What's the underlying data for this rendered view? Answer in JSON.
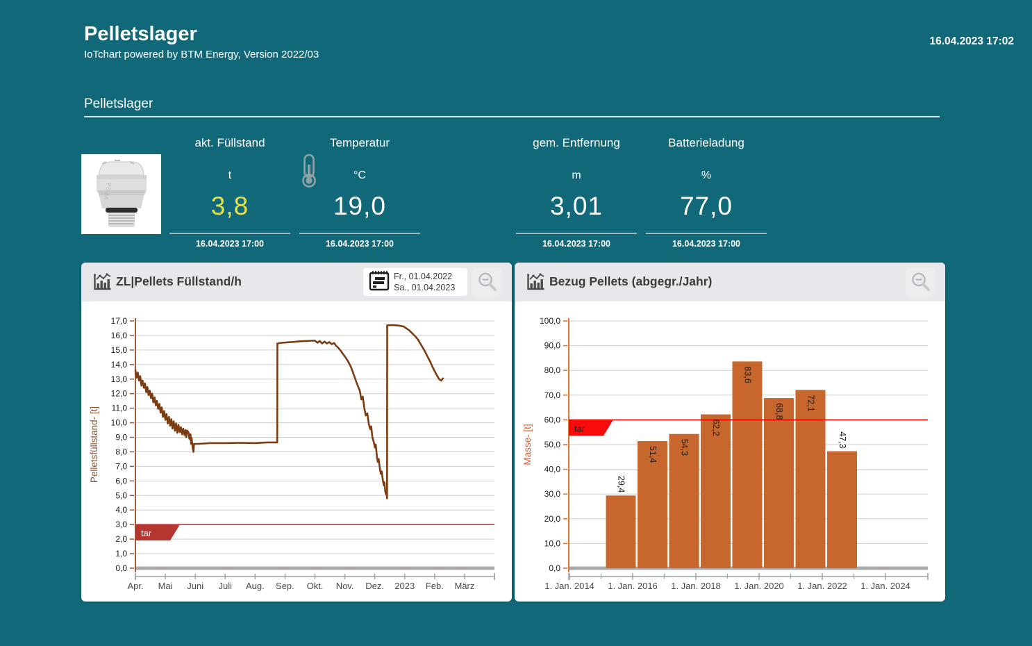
{
  "app": {
    "title": "Pelletslager",
    "subtitle": "IoTchart powered by BTM Energy, Version 2022/03",
    "timestamp": "16.04.2023 17:02"
  },
  "section": {
    "title": "Pelletslager"
  },
  "sensor": {
    "label": "VEGA"
  },
  "kpis": [
    {
      "label": "akt. Füllstand",
      "unit": "t",
      "value": "3,8",
      "timestamp": "16.04.2023 17:00",
      "value_color": "#e6e24c"
    },
    {
      "label": "Temperatur",
      "unit": "°C",
      "value": "19,0",
      "timestamp": "16.04.2023 17:00",
      "value_color": "#ffffff",
      "icon": "thermometer-icon"
    },
    {
      "label": "gem. Entfernung",
      "unit": "m",
      "value": "3,01",
      "timestamp": "16.04.2023 17:00",
      "value_color": "#ffffff"
    },
    {
      "label": "Batterieladung",
      "unit": "%",
      "value": "77,0",
      "timestamp": "16.04.2023 17:00",
      "value_color": "#ffffff"
    }
  ],
  "toolbar": {
    "date_from": "Fr., 01.04.2022",
    "date_to": "Sa., 01.04.2023"
  },
  "colors": {
    "background": "#116879",
    "card_header": "#e6e8eb",
    "kpi_value_highlight": "#e6e24c"
  },
  "chart_data": [
    {
      "type": "line",
      "title": "ZL|Pellets Füllstand/h",
      "ylabel": "Pelletsfüllstand- [t]",
      "ylim": [
        0,
        17
      ],
      "ytick_step": 1.0,
      "x_range_months": [
        0,
        12
      ],
      "xtick_labels": [
        "Apr.",
        "Mai",
        "Juni",
        "Juli",
        "Aug.",
        "Sep.",
        "Okt.",
        "Nov.",
        "Dez.",
        "2023",
        "Feb.",
        "März"
      ],
      "grid": true,
      "threshold": {
        "value": 3.0,
        "label": "tar",
        "line_color": "#cf3934",
        "flag_color": "#b53631",
        "text_color": "#ffffff"
      },
      "line_color": "#7a3c10",
      "axis_color": "#9c5e40",
      "ylabel_color": "#8d5230",
      "series": [
        [
          0,
          13.6
        ],
        [
          0.04,
          13.1
        ],
        [
          0.08,
          13.45
        ],
        [
          0.12,
          12.9
        ],
        [
          0.16,
          13.2
        ],
        [
          0.2,
          12.55
        ],
        [
          0.24,
          12.9
        ],
        [
          0.28,
          12.4
        ],
        [
          0.32,
          12.7
        ],
        [
          0.36,
          12.1
        ],
        [
          0.4,
          12.45
        ],
        [
          0.44,
          11.9
        ],
        [
          0.48,
          12.2
        ],
        [
          0.52,
          11.7
        ],
        [
          0.56,
          12.0
        ],
        [
          0.6,
          11.4
        ],
        [
          0.64,
          11.75
        ],
        [
          0.68,
          11.2
        ],
        [
          0.72,
          11.5
        ],
        [
          0.76,
          10.95
        ],
        [
          0.8,
          11.3
        ],
        [
          0.84,
          10.7
        ],
        [
          0.88,
          11.05
        ],
        [
          0.92,
          10.4
        ],
        [
          0.96,
          10.8
        ],
        [
          1.0,
          10.2
        ],
        [
          1.04,
          10.6
        ],
        [
          1.08,
          9.95
        ],
        [
          1.12,
          10.4
        ],
        [
          1.16,
          9.8
        ],
        [
          1.2,
          10.25
        ],
        [
          1.24,
          9.6
        ],
        [
          1.28,
          10.1
        ],
        [
          1.32,
          9.45
        ],
        [
          1.36,
          9.95
        ],
        [
          1.4,
          9.3
        ],
        [
          1.44,
          9.85
        ],
        [
          1.48,
          9.35
        ],
        [
          1.52,
          9.7
        ],
        [
          1.56,
          9.2
        ],
        [
          1.6,
          9.6
        ],
        [
          1.64,
          9.15
        ],
        [
          1.68,
          9.5
        ],
        [
          1.7,
          9.0
        ],
        [
          1.74,
          9.45
        ],
        [
          1.78,
          9.3
        ],
        [
          1.8,
          8.9
        ],
        [
          1.84,
          9.2
        ],
        [
          1.86,
          8.55
        ],
        [
          1.88,
          8.95
        ],
        [
          1.9,
          8.5
        ],
        [
          1.92,
          8.2
        ],
        [
          1.94,
          8.0
        ],
        [
          1.96,
          8.55
        ],
        [
          2.1,
          8.55
        ],
        [
          2.5,
          8.6
        ],
        [
          3.0,
          8.6
        ],
        [
          3.5,
          8.62
        ],
        [
          4.0,
          8.6
        ],
        [
          4.4,
          8.65
        ],
        [
          4.74,
          8.65
        ],
        [
          4.745,
          15.45
        ],
        [
          4.9,
          15.5
        ],
        [
          5.1,
          15.53
        ],
        [
          5.3,
          15.56
        ],
        [
          5.5,
          15.6
        ],
        [
          5.7,
          15.62
        ],
        [
          5.9,
          15.64
        ],
        [
          6.0,
          15.65
        ],
        [
          6.08,
          15.5
        ],
        [
          6.16,
          15.62
        ],
        [
          6.24,
          15.45
        ],
        [
          6.32,
          15.58
        ],
        [
          6.4,
          15.45
        ],
        [
          6.48,
          15.55
        ],
        [
          6.56,
          15.4
        ],
        [
          6.64,
          15.48
        ],
        [
          6.7,
          15.3
        ],
        [
          6.78,
          15.15
        ],
        [
          6.86,
          14.95
        ],
        [
          6.94,
          14.72
        ],
        [
          7.02,
          14.5
        ],
        [
          7.1,
          14.25
        ],
        [
          7.2,
          13.85
        ],
        [
          7.3,
          13.3
        ],
        [
          7.4,
          12.7
        ],
        [
          7.5,
          12.2
        ],
        [
          7.55,
          11.6
        ],
        [
          7.6,
          11.8
        ],
        [
          7.65,
          11.0
        ],
        [
          7.7,
          10.5
        ],
        [
          7.75,
          10.65
        ],
        [
          7.8,
          9.9
        ],
        [
          7.85,
          9.55
        ],
        [
          7.88,
          9.75
        ],
        [
          7.92,
          9.0
        ],
        [
          7.97,
          8.65
        ],
        [
          8.0,
          8.3
        ],
        [
          8.03,
          8.5
        ],
        [
          8.07,
          7.7
        ],
        [
          8.1,
          7.3
        ],
        [
          8.13,
          7.5
        ],
        [
          8.17,
          6.85
        ],
        [
          8.2,
          6.5
        ],
        [
          8.23,
          6.65
        ],
        [
          8.27,
          6.05
        ],
        [
          8.3,
          5.7
        ],
        [
          8.32,
          5.9
        ],
        [
          8.35,
          5.3
        ],
        [
          8.37,
          5.1
        ],
        [
          8.39,
          5.25
        ],
        [
          8.41,
          4.8
        ],
        [
          8.415,
          16.7
        ],
        [
          8.6,
          16.72
        ],
        [
          8.8,
          16.68
        ],
        [
          8.96,
          16.62
        ],
        [
          9.05,
          16.5
        ],
        [
          9.15,
          16.35
        ],
        [
          9.25,
          16.15
        ],
        [
          9.35,
          15.95
        ],
        [
          9.45,
          15.7
        ],
        [
          9.55,
          15.35
        ],
        [
          9.65,
          15.0
        ],
        [
          9.75,
          14.6
        ],
        [
          9.85,
          14.2
        ],
        [
          9.95,
          13.75
        ],
        [
          10.05,
          13.35
        ],
        [
          10.15,
          13.0
        ],
        [
          10.22,
          12.9
        ],
        [
          10.28,
          13.05
        ]
      ]
    },
    {
      "type": "bar",
      "title": "Bezug Pellets (abgegr./Jahr)",
      "ylabel": "Masse- [t]",
      "ylim": [
        0,
        100
      ],
      "ytick_step": 10.0,
      "x_range_years": [
        2014,
        2025.4
      ],
      "xticks_major": [
        {
          "pos": 2014,
          "label": "1. Jan. 2014"
        },
        {
          "pos": 2016,
          "label": "1. Jan. 2016"
        },
        {
          "pos": 2018,
          "label": "1. Jan. 2018"
        },
        {
          "pos": 2020,
          "label": "1. Jan. 2020"
        },
        {
          "pos": 2022,
          "label": "1. Jan. 2022"
        },
        {
          "pos": 2024,
          "label": "1. Jan. 2024"
        }
      ],
      "xticks_minor": [
        2015,
        2017,
        2019,
        2021,
        2023
      ],
      "grid": true,
      "threshold": {
        "value": 60.0,
        "label": "tar",
        "line_color": "#ff0000",
        "flag_color": "#f90b0b",
        "text_color": "#1a1a1a"
      },
      "bar_color": "#c7672e",
      "axis_color": "#e0752f",
      "ylabel_color": "#d95b35",
      "categories": [
        2015,
        2016,
        2017,
        2018,
        2019,
        2020,
        2021,
        2022
      ],
      "values": [
        29.4,
        51.4,
        54.3,
        62.2,
        83.6,
        68.8,
        72.1,
        47.3
      ],
      "labels": [
        "29,4",
        "51,4",
        "54,3",
        "62,2",
        "83,6",
        "68,8",
        "72,1",
        "47,3"
      ],
      "label_inside": [
        false,
        true,
        true,
        true,
        true,
        true,
        true,
        false
      ]
    }
  ]
}
